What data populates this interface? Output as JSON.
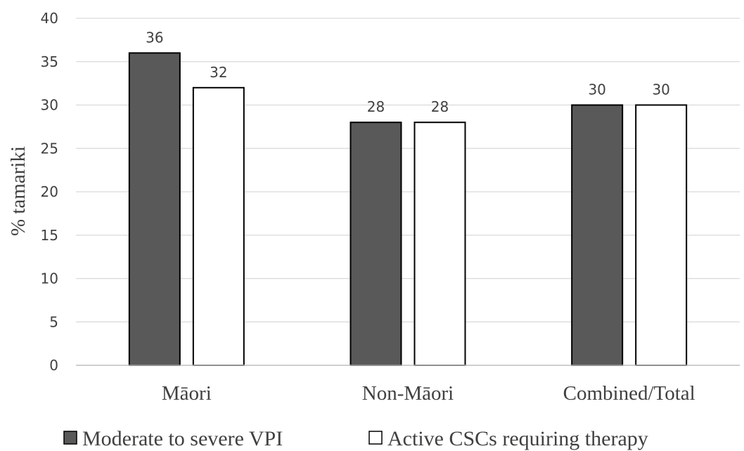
{
  "chart_data": {
    "type": "bar",
    "categories": [
      "Māori",
      "Non-Māori",
      "Combined/Total"
    ],
    "series": [
      {
        "name": "Moderate to severe VPI",
        "values": [
          36,
          28,
          30
        ],
        "color": "#595959"
      },
      {
        "name": "Active CSCs requiring therapy",
        "values": [
          32,
          28,
          30
        ],
        "color": "#ffffff"
      }
    ],
    "ylabel": "% tamariki",
    "ylim": [
      0,
      40
    ],
    "yticks": [
      0,
      5,
      10,
      15,
      20,
      25,
      30,
      35,
      40
    ],
    "grid": true,
    "legend": "bottom",
    "data_labels": true
  }
}
